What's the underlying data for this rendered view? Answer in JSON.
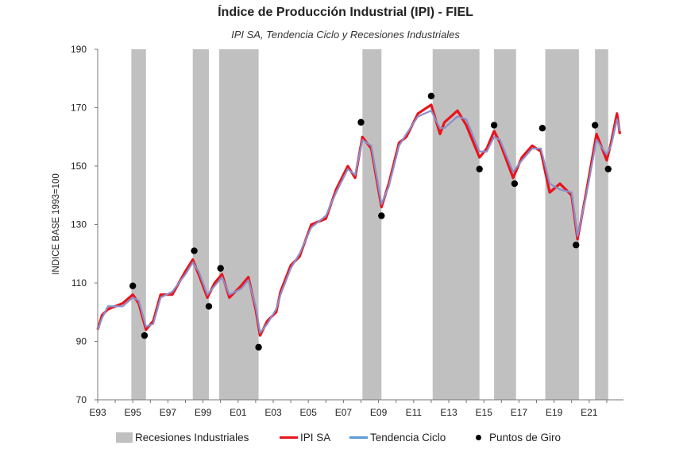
{
  "chart_data": {
    "type": "line",
    "title": "Índice de Producción Industrial (IPI) - FIEL",
    "subtitle": "IPI SA, Tendencia Ciclo y Recesiones Industriales",
    "ylabel": "INDICE BASE 1993=100",
    "xlabel": "",
    "ylim": [
      70,
      190
    ],
    "yticks": [
      70,
      90,
      110,
      130,
      150,
      170,
      190
    ],
    "xlim": [
      "1993-01",
      "2022-12"
    ],
    "xtick_labels": [
      "E93",
      "E95",
      "E97",
      "E99",
      "E01",
      "E03",
      "E05",
      "E07",
      "E09",
      "E11",
      "E13",
      "E15",
      "E17",
      "E19",
      "E21"
    ],
    "grid": false,
    "legend_position": "bottom",
    "legend": {
      "recessions": "Recesiones Industriales",
      "ipi": "IPI SA",
      "trend": "Tendencia Ciclo",
      "points": "Puntos de Giro"
    },
    "colors": {
      "recessions": "#c0c0c0",
      "ipi": "#e8141c",
      "trend": "#8a8fc9",
      "trend_legend": "#5b9bd5",
      "points": "#000000"
    },
    "recessions": [
      [
        "1994-12",
        "1995-10"
      ],
      [
        "1998-06",
        "1999-05"
      ],
      [
        "1999-12",
        "2002-03"
      ],
      [
        "2008-02",
        "2009-03"
      ],
      [
        "2012-02",
        "2014-10"
      ],
      [
        "2015-08",
        "2016-11"
      ],
      [
        "2018-07",
        "2020-06"
      ],
      [
        "2021-05",
        "2022-02"
      ]
    ],
    "series": [
      {
        "name": "Tendencia Ciclo",
        "dates": [
          "1993-01",
          "1993-04",
          "1993-08",
          "1994-06",
          "1995-01",
          "1995-05",
          "1995-10",
          "1996-03",
          "1996-08",
          "1997-04",
          "1998-01",
          "1998-06",
          "1998-10",
          "1999-04",
          "1999-09",
          "2000-02",
          "2000-07",
          "2001-03",
          "2001-08",
          "2002-01",
          "2002-04",
          "2002-09",
          "2003-03",
          "2003-06",
          "2004-01",
          "2004-07",
          "2005-03",
          "2006-01",
          "2006-08",
          "2007-04",
          "2007-09",
          "2008-02",
          "2008-08",
          "2009-03",
          "2009-08",
          "2010-03",
          "2010-08",
          "2011-04",
          "2012-01",
          "2012-07",
          "2012-10",
          "2013-07",
          "2014-01",
          "2014-10",
          "2015-03",
          "2015-08",
          "2015-12",
          "2016-09",
          "2017-03",
          "2017-10",
          "2018-04",
          "2018-10",
          "2019-05",
          "2020-01",
          "2020-05",
          "2020-11",
          "2021-06",
          "2022-01",
          "2022-04",
          "2022-08",
          "2022-10"
        ],
        "values": [
          94,
          98,
          102,
          102,
          105,
          104,
          95,
          96,
          105,
          107,
          113,
          117,
          114,
          106,
          109,
          112,
          106,
          108,
          111,
          102,
          93,
          96,
          101,
          106,
          115,
          120,
          129,
          133,
          141,
          149,
          147,
          159,
          157,
          137,
          143,
          157,
          161,
          167,
          169,
          163,
          163,
          167,
          166,
          155,
          155,
          160,
          159,
          148,
          152,
          156,
          156,
          144,
          142,
          141,
          126,
          140,
          159,
          154,
          157,
          166,
          162
        ]
      },
      {
        "name": "IPI SA",
        "dates": [
          "1993-01",
          "1993-04",
          "1993-08",
          "1994-06",
          "1995-01",
          "1995-05",
          "1995-10",
          "1996-03",
          "1996-08",
          "1997-04",
          "1998-01",
          "1998-06",
          "1998-10",
          "1999-04",
          "1999-09",
          "2000-02",
          "2000-07",
          "2001-03",
          "2001-08",
          "2002-01",
          "2002-04",
          "2002-09",
          "2003-03",
          "2003-06",
          "2004-01",
          "2004-07",
          "2005-03",
          "2006-01",
          "2006-08",
          "2007-04",
          "2007-09",
          "2008-02",
          "2008-08",
          "2009-03",
          "2009-08",
          "2010-03",
          "2010-08",
          "2011-04",
          "2012-01",
          "2012-07",
          "2012-10",
          "2013-07",
          "2014-01",
          "2014-10",
          "2015-03",
          "2015-08",
          "2015-12",
          "2016-09",
          "2017-03",
          "2017-10",
          "2018-04",
          "2018-10",
          "2019-05",
          "2020-01",
          "2020-05",
          "2020-11",
          "2021-06",
          "2022-01",
          "2022-04",
          "2022-08",
          "2022-10"
        ],
        "values": [
          94,
          99,
          101,
          103,
          106,
          103,
          94,
          97,
          106,
          106,
          114,
          118,
          113,
          105,
          110,
          113,
          105,
          109,
          112,
          101,
          92,
          97,
          100,
          107,
          116,
          119,
          130,
          132,
          142,
          150,
          146,
          160,
          156,
          136,
          144,
          158,
          160,
          168,
          171,
          161,
          165,
          169,
          164,
          153,
          156,
          162,
          158,
          146,
          153,
          157,
          155,
          141,
          144,
          140,
          125,
          141,
          161,
          152,
          158,
          168,
          161
        ]
      }
    ],
    "turning_points": [
      {
        "date": "1995-01",
        "value": 109
      },
      {
        "date": "1995-09",
        "value": 92
      },
      {
        "date": "1998-07",
        "value": 121
      },
      {
        "date": "1999-05",
        "value": 102
      },
      {
        "date": "2000-01",
        "value": 115
      },
      {
        "date": "2002-03",
        "value": 88
      },
      {
        "date": "2008-01",
        "value": 165
      },
      {
        "date": "2009-03",
        "value": 133
      },
      {
        "date": "2012-01",
        "value": 174
      },
      {
        "date": "2014-10",
        "value": 149
      },
      {
        "date": "2015-08",
        "value": 164
      },
      {
        "date": "2016-10",
        "value": 144
      },
      {
        "date": "2018-05",
        "value": 163
      },
      {
        "date": "2020-04",
        "value": 123
      },
      {
        "date": "2021-05",
        "value": 164
      },
      {
        "date": "2022-02",
        "value": 149
      }
    ]
  }
}
